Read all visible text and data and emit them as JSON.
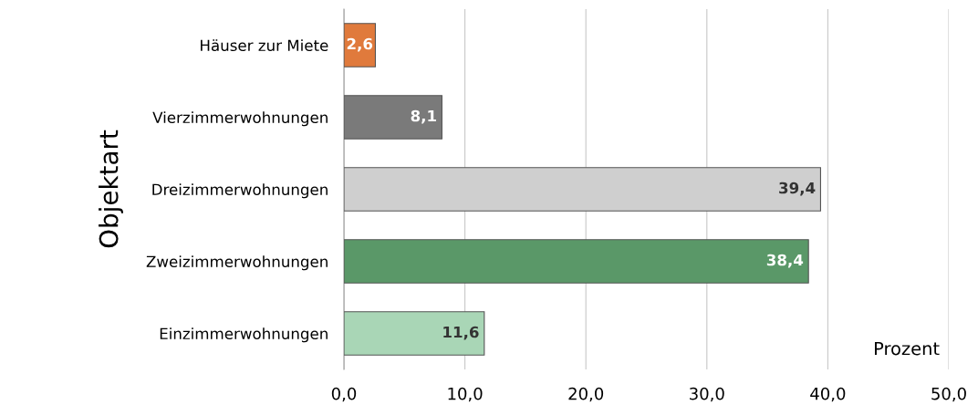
{
  "chart_data": {
    "type": "bar",
    "orientation": "horizontal",
    "ylabel": "Objektart",
    "xlabel": "Prozent",
    "categories": [
      "Häuser zur Miete",
      "Vierzimmerwohnungen",
      "Dreizimmerwohnungen",
      "Zweizimmerwohnungen",
      "Einzimmerwohnungen"
    ],
    "values": [
      2.6,
      8.1,
      39.4,
      38.4,
      11.6
    ],
    "colors": [
      "#e07a3c",
      "#7a7a7a",
      "#cfcfcf",
      "#5a9868",
      "#a9d6b6"
    ],
    "value_labels": [
      "2,6",
      "8,1",
      "39,4",
      "38,4",
      "11,6"
    ],
    "xlim": [
      0,
      50
    ],
    "xticks": [
      {
        "value": 0,
        "label": "0,0"
      },
      {
        "value": 10,
        "label": "10,0"
      },
      {
        "value": 20,
        "label": "20,0"
      },
      {
        "value": 30,
        "label": "30,0"
      },
      {
        "value": 40,
        "label": "40,0"
      },
      {
        "value": 50,
        "label": "50,0"
      }
    ],
    "grid": "x"
  }
}
